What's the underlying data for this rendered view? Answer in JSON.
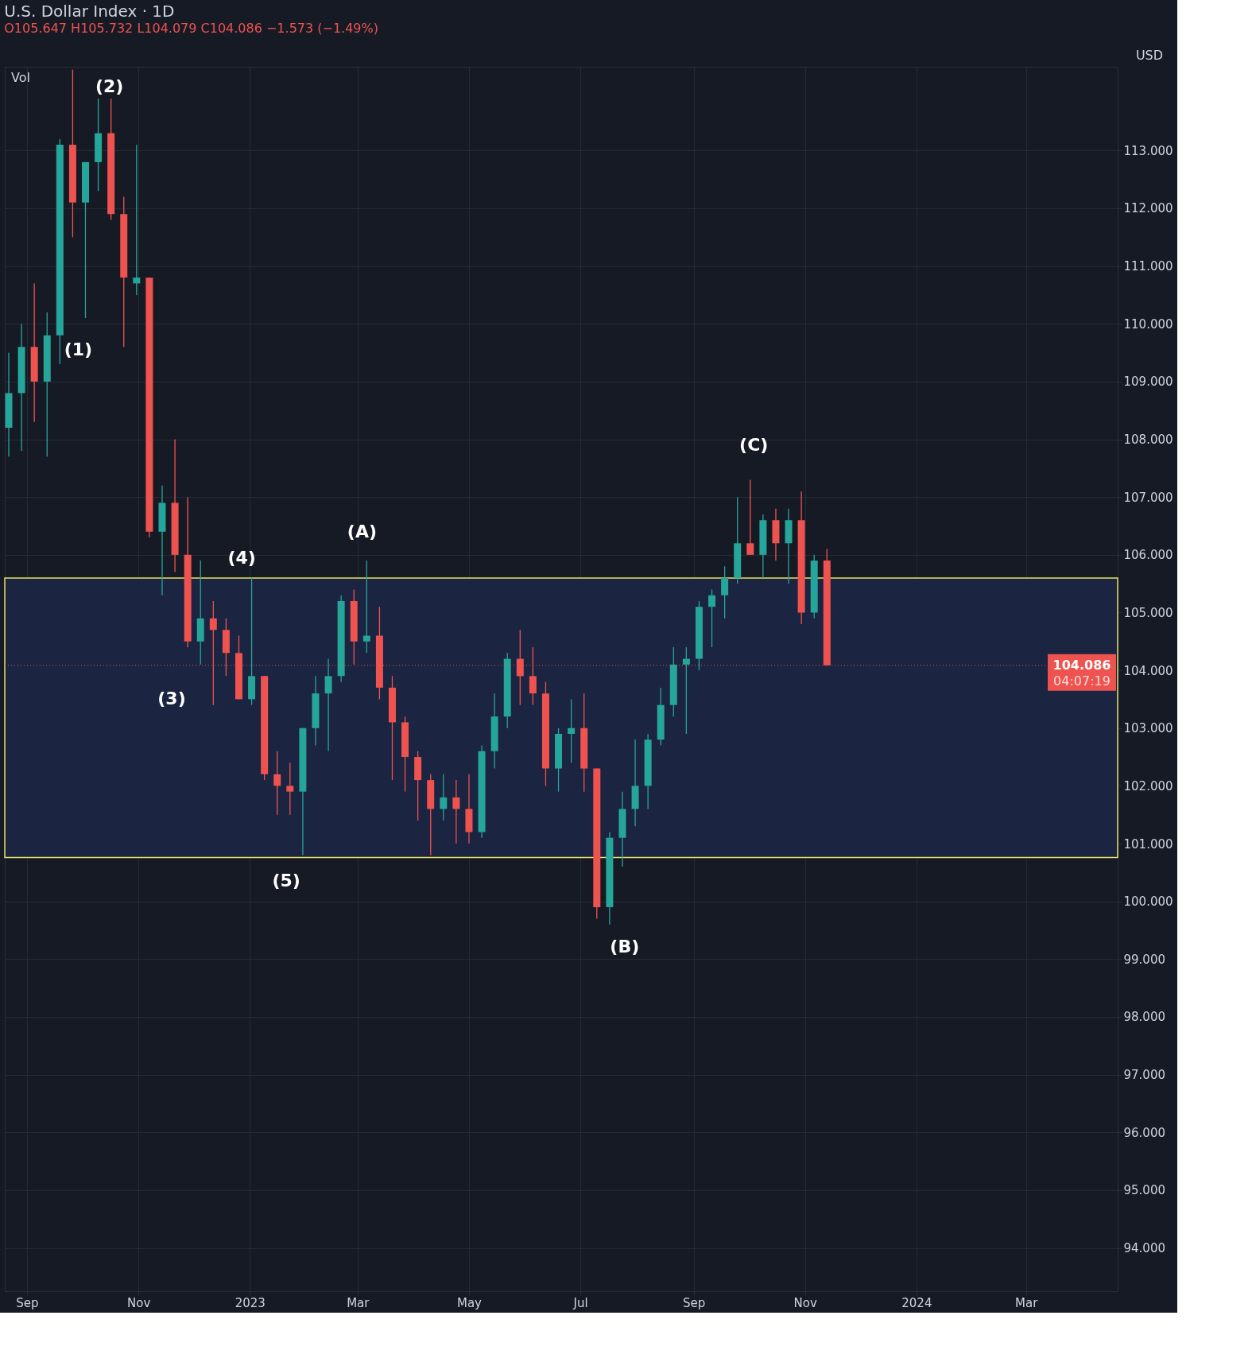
{
  "chart_data": {
    "type": "candlestick",
    "title": "U.S. Dollar Index · 1D",
    "subtitle": "O105.647 H105.732 L104.079 C104.086 −1.573 (−1.49%)",
    "x": [
      "2022-08-22",
      "2022-08-29",
      "2022-09-05",
      "2022-09-12",
      "2022-09-19",
      "2022-09-26",
      "2022-10-03",
      "2022-10-10",
      "2022-10-17",
      "2022-10-24",
      "2022-10-31",
      "2022-11-07",
      "2022-11-14",
      "2022-11-21",
      "2022-11-28",
      "2022-12-05",
      "2022-12-12",
      "2022-12-19",
      "2022-12-26",
      "2023-01-02",
      "2023-01-09",
      "2023-01-16",
      "2023-01-23",
      "2023-01-30",
      "2023-02-06",
      "2023-02-13",
      "2023-02-20",
      "2023-02-27",
      "2023-03-06",
      "2023-03-13",
      "2023-03-20",
      "2023-03-27",
      "2023-04-03",
      "2023-04-10",
      "2023-04-17",
      "2023-04-24",
      "2023-05-01",
      "2023-05-08",
      "2023-05-15",
      "2023-05-22",
      "2023-05-29",
      "2023-06-05",
      "2023-06-12",
      "2023-06-19",
      "2023-06-26",
      "2023-07-03",
      "2023-07-10",
      "2023-07-17",
      "2023-07-24",
      "2023-07-31",
      "2023-08-07",
      "2023-08-14",
      "2023-08-21",
      "2023-08-28",
      "2023-09-04",
      "2023-09-11",
      "2023-09-18",
      "2023-09-25",
      "2023-10-02",
      "2023-10-09",
      "2023-10-16",
      "2023-10-23",
      "2023-10-30",
      "2023-11-06",
      "2023-11-13"
    ],
    "ohlc": [
      [
        108.2,
        109.5,
        107.7,
        108.8
      ],
      [
        108.8,
        110.0,
        107.8,
        109.6
      ],
      [
        109.6,
        110.7,
        108.3,
        109.0
      ],
      [
        109.0,
        110.2,
        107.7,
        109.8
      ],
      [
        109.8,
        113.2,
        109.3,
        113.1
      ],
      [
        113.1,
        114.4,
        111.5,
        112.1
      ],
      [
        112.1,
        112.8,
        110.1,
        112.8
      ],
      [
        112.8,
        113.9,
        112.3,
        113.3
      ],
      [
        113.3,
        113.9,
        111.8,
        111.9
      ],
      [
        111.9,
        112.2,
        109.6,
        110.8
      ],
      [
        110.7,
        113.1,
        110.5,
        110.8
      ],
      [
        110.8,
        110.8,
        106.3,
        106.4
      ],
      [
        106.4,
        107.2,
        105.3,
        106.9
      ],
      [
        106.9,
        108.0,
        105.7,
        106.0
      ],
      [
        106.0,
        107.0,
        104.4,
        104.5
      ],
      [
        104.5,
        105.9,
        104.1,
        104.9
      ],
      [
        104.9,
        105.2,
        103.4,
        104.7
      ],
      [
        104.7,
        104.9,
        103.9,
        104.3
      ],
      [
        104.3,
        104.6,
        103.5,
        103.5
      ],
      [
        103.5,
        105.6,
        103.4,
        103.9
      ],
      [
        103.9,
        103.9,
        102.1,
        102.2
      ],
      [
        102.2,
        102.6,
        101.5,
        102.0
      ],
      [
        102.0,
        102.4,
        101.5,
        101.9
      ],
      [
        101.9,
        103.0,
        100.8,
        103.0
      ],
      [
        103.0,
        103.9,
        102.7,
        103.6
      ],
      [
        103.6,
        104.2,
        102.6,
        103.9
      ],
      [
        103.9,
        105.3,
        103.8,
        105.2
      ],
      [
        105.2,
        105.4,
        104.1,
        104.5
      ],
      [
        104.5,
        105.9,
        104.3,
        104.6
      ],
      [
        104.6,
        105.1,
        103.5,
        103.7
      ],
      [
        103.7,
        103.9,
        102.1,
        103.1
      ],
      [
        103.1,
        103.2,
        101.9,
        102.5
      ],
      [
        102.5,
        102.6,
        101.4,
        102.1
      ],
      [
        102.1,
        102.2,
        100.8,
        101.6
      ],
      [
        101.6,
        102.2,
        101.4,
        101.8
      ],
      [
        101.8,
        102.1,
        101.0,
        101.6
      ],
      [
        101.6,
        102.2,
        101.0,
        101.2
      ],
      [
        101.2,
        102.7,
        101.1,
        102.6
      ],
      [
        102.6,
        103.6,
        102.3,
        103.2
      ],
      [
        103.2,
        104.3,
        103.0,
        104.2
      ],
      [
        104.2,
        104.7,
        103.4,
        103.9
      ],
      [
        103.9,
        104.4,
        103.4,
        103.6
      ],
      [
        103.6,
        103.8,
        102.0,
        102.3
      ],
      [
        102.3,
        103.0,
        101.9,
        102.9
      ],
      [
        102.9,
        103.5,
        102.4,
        103.0
      ],
      [
        103.0,
        103.6,
        101.9,
        102.3
      ],
      [
        102.3,
        102.3,
        99.7,
        99.9
      ],
      [
        99.9,
        101.2,
        99.6,
        101.1
      ],
      [
        101.1,
        101.9,
        100.6,
        101.6
      ],
      [
        101.6,
        102.8,
        101.3,
        102.0
      ],
      [
        102.0,
        102.9,
        101.6,
        102.8
      ],
      [
        102.8,
        103.7,
        102.7,
        103.4
      ],
      [
        103.4,
        104.4,
        103.2,
        104.1
      ],
      [
        104.1,
        104.4,
        102.9,
        104.2
      ],
      [
        104.2,
        105.2,
        104.0,
        105.1
      ],
      [
        105.1,
        105.4,
        104.4,
        105.3
      ],
      [
        105.3,
        105.8,
        104.9,
        105.6
      ],
      [
        105.6,
        107.0,
        105.5,
        106.2
      ],
      [
        106.2,
        107.3,
        106.0,
        106.0
      ],
      [
        106.0,
        106.7,
        105.6,
        106.6
      ],
      [
        106.6,
        106.8,
        105.9,
        106.2
      ],
      [
        106.2,
        106.8,
        105.5,
        106.6
      ],
      [
        106.6,
        107.1,
        104.8,
        105.0
      ],
      [
        105.0,
        106.0,
        104.9,
        105.9
      ],
      [
        105.9,
        106.1,
        104.079,
        104.086
      ]
    ],
    "colors": [
      "#26a69a",
      "#26a69a",
      "#ef5350",
      "#26a69a",
      "#26a69a",
      "#ef5350",
      "#26a69a",
      "#26a69a",
      "#ef5350",
      "#ef5350",
      "#26a69a",
      "#ef5350",
      "#26a69a",
      "#ef5350",
      "#ef5350",
      "#26a69a",
      "#ef5350",
      "#ef5350",
      "#ef5350",
      "#26a69a",
      "#ef5350",
      "#ef5350",
      "#ef5350",
      "#26a69a",
      "#26a69a",
      "#26a69a",
      "#26a69a",
      "#ef5350",
      "#26a69a",
      "#ef5350",
      "#ef5350",
      "#ef5350",
      "#ef5350",
      "#ef5350",
      "#26a69a",
      "#ef5350",
      "#ef5350",
      "#26a69a",
      "#26a69a",
      "#26a69a",
      "#ef5350",
      "#ef5350",
      "#ef5350",
      "#26a69a",
      "#26a69a",
      "#ef5350",
      "#ef5350",
      "#26a69a",
      "#26a69a",
      "#26a69a",
      "#26a69a",
      "#26a69a",
      "#26a69a",
      "#26a69a",
      "#26a69a",
      "#26a69a",
      "#26a69a",
      "#26a69a",
      "#ef5350",
      "#26a69a",
      "#ef5350",
      "#26a69a",
      "#ef5350",
      "#26a69a",
      "#ef5350"
    ],
    "xlim": [
      "2022-08-22",
      "2024-04-18"
    ],
    "xticks": [
      {
        "value": "2022-09-01",
        "label": "Sep"
      },
      {
        "value": "2022-11-01",
        "label": "Nov"
      },
      {
        "value": "2023-01-01",
        "label": "2023"
      },
      {
        "value": "2023-03-01",
        "label": "Mar"
      },
      {
        "value": "2023-05-01",
        "label": "May"
      },
      {
        "value": "2023-07-01",
        "label": "Jul"
      },
      {
        "value": "2023-09-01",
        "label": "Sep"
      },
      {
        "value": "2023-11-01",
        "label": "Nov"
      },
      {
        "value": "2024-01-01",
        "label": "2024"
      },
      {
        "value": "2024-03-01",
        "label": "Mar"
      }
    ],
    "ylim": [
      93.25,
      114.45
    ],
    "yticks": [
      {
        "value": 94,
        "label": "94.000"
      },
      {
        "value": 95,
        "label": "95.000"
      },
      {
        "value": 96,
        "label": "96.000"
      },
      {
        "value": 97,
        "label": "97.000"
      },
      {
        "value": 98,
        "label": "98.000"
      },
      {
        "value": 99,
        "label": "99.000"
      },
      {
        "value": 100,
        "label": "100.000"
      },
      {
        "value": 101,
        "label": "101.000"
      },
      {
        "value": 102,
        "label": "102.000"
      },
      {
        "value": 103,
        "label": "103.000"
      },
      {
        "value": 104,
        "label": "104.000"
      },
      {
        "value": 105,
        "label": "105.000"
      },
      {
        "value": 106,
        "label": "106.000"
      },
      {
        "value": 107,
        "label": "107.000"
      },
      {
        "value": 108,
        "label": "108.000"
      },
      {
        "value": 109,
        "label": "109.000"
      },
      {
        "value": 110,
        "label": "110.000"
      },
      {
        "value": 111,
        "label": "111.000"
      },
      {
        "value": 112,
        "label": "112.000"
      },
      {
        "value": 113,
        "label": "113.000"
      }
    ],
    "grid": true,
    "ref_lines": [
      {
        "axis": "y",
        "value": 104.086,
        "label": "104.086",
        "color": "#ef5350",
        "line_style": "dotted"
      }
    ],
    "bands": [
      {
        "axis": "y",
        "from": 100.76,
        "to": 105.6,
        "color": "#1b2440"
      }
    ],
    "annotations": [
      "(1)",
      "(2)",
      "(3)",
      "(4)",
      "(5)",
      "(A)",
      "(B)",
      "(C)",
      "Vol",
      "USD",
      "04:07:19"
    ]
  }
}
